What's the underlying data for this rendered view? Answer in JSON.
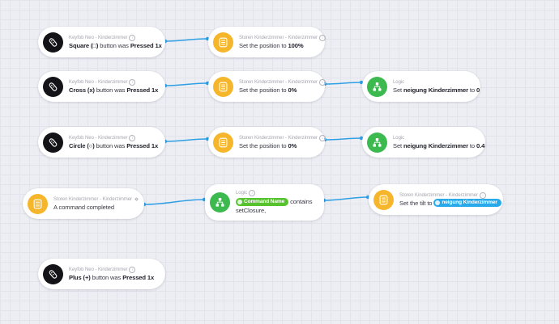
{
  "colors": {
    "bg": "#edeef3",
    "grid": "#e2e3eb",
    "line": "#2f9fe4",
    "tag_green": "#55c22e",
    "tag_blue": "#28a9e9",
    "icon_black": "#141418",
    "icon_yellow": "#f6b62c",
    "icon_green": "#3cb94f"
  },
  "cards": [
    {
      "header": "Keyfob Neo - Kinderzimmer",
      "segments": [
        {
          "text": "Square (□) ",
          "style": "bold"
        },
        {
          "text": "button was ",
          "style": "text"
        },
        {
          "text": "Pressed 1x",
          "style": "bold"
        }
      ]
    },
    {
      "header": "Storen Kinderzimmer - Kinderzimmer",
      "segments": [
        {
          "text": "Set the position to ",
          "style": "text"
        },
        {
          "text": "100%",
          "style": "bold"
        }
      ]
    },
    {
      "header": "Keyfob Neo - Kinderzimmer",
      "segments": [
        {
          "text": "Cross (x) ",
          "style": "bold"
        },
        {
          "text": "button was ",
          "style": "text"
        },
        {
          "text": "Pressed 1x",
          "style": "bold"
        }
      ]
    },
    {
      "header": "Storen Kinderzimmer - Kinderzimmer",
      "segments": [
        {
          "text": "Set the position to ",
          "style": "text"
        },
        {
          "text": "0%",
          "style": "bold"
        }
      ]
    },
    {
      "header": "Logic",
      "segments": [
        {
          "text": "Set ",
          "style": "text"
        },
        {
          "text": "neigung Kinderzimmer",
          "style": "bold"
        },
        {
          "text": " to ",
          "style": "text"
        },
        {
          "text": "0",
          "style": "bold"
        }
      ]
    },
    {
      "header": "Keyfob Neo - Kinderzimmer",
      "segments": [
        {
          "text": "Circle (○) ",
          "style": "bold"
        },
        {
          "text": "button was ",
          "style": "text"
        },
        {
          "text": "Pressed 1x",
          "style": "bold"
        }
      ]
    },
    {
      "header": "Storen Kinderzimmer - Kinderzimmer",
      "segments": [
        {
          "text": "Set the position to ",
          "style": "text"
        },
        {
          "text": "0%",
          "style": "bold"
        }
      ]
    },
    {
      "header": "Logic",
      "segments": [
        {
          "text": "Set ",
          "style": "text"
        },
        {
          "text": "neigung Kinderzimmer",
          "style": "bold"
        },
        {
          "text": " to ",
          "style": "text"
        },
        {
          "text": "0.4",
          "style": "bold"
        }
      ]
    },
    {
      "header": "Storen Kinderzimmer - Kinderzimmer",
      "segments": [
        {
          "text": "A command completed",
          "style": "text"
        }
      ]
    },
    {
      "header": "Logic",
      "segments": [
        {
          "text": "Command Name",
          "style": "tag-green"
        },
        {
          "text": " contains",
          "style": "text"
        },
        {
          "text": "setClosure,",
          "style": "text",
          "break": true
        }
      ]
    },
    {
      "header": "Storen Kinderzimmer - Kinderzimmer",
      "segments": [
        {
          "text": "Set the tilt to ",
          "style": "text"
        },
        {
          "text": "neigung Kinderzimmer",
          "style": "tag-blue"
        }
      ]
    },
    {
      "header": "Keyfob Neo - Kinderzimmer",
      "segments": [
        {
          "text": "Plus (+) ",
          "style": "bold"
        },
        {
          "text": "button was ",
          "style": "text"
        },
        {
          "text": "Pressed 1x",
          "style": "bold"
        }
      ]
    }
  ]
}
